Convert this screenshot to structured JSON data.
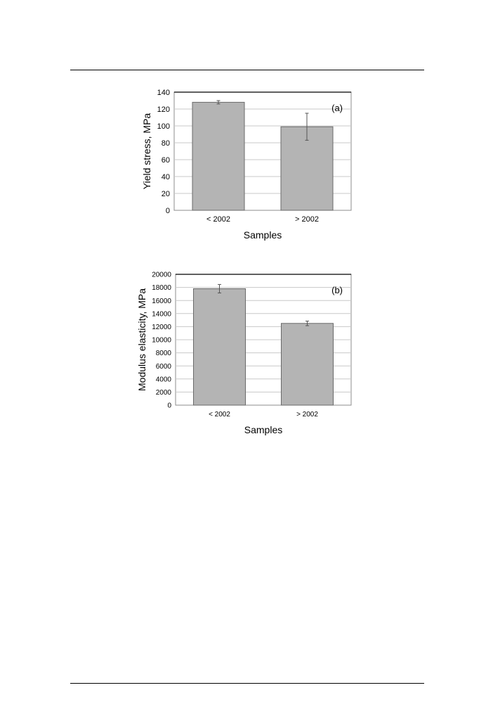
{
  "chart_data": [
    {
      "type": "bar",
      "panel_label": "(a)",
      "categories": [
        "< 2002",
        "> 2002"
      ],
      "values": [
        128,
        99
      ],
      "error": [
        2,
        16
      ],
      "title": "",
      "xlabel": "Samples",
      "ylabel": "Yield stress, MPa",
      "ylim": [
        0,
        140
      ],
      "yticks": [
        0,
        20,
        40,
        60,
        80,
        100,
        120,
        140
      ],
      "grid": true,
      "bar_color": "#b4b4b4"
    },
    {
      "type": "bar",
      "panel_label": "(b)",
      "categories": [
        "< 2002",
        "> 2002"
      ],
      "values": [
        17800,
        12500
      ],
      "error": [
        650,
        350
      ],
      "title": "",
      "xlabel": "Samples",
      "ylabel": "Modulus elasticity, MPa",
      "ylim": [
        0,
        20000
      ],
      "yticks": [
        0,
        2000,
        4000,
        6000,
        8000,
        10000,
        12000,
        14000,
        16000,
        18000,
        20000
      ],
      "grid": true,
      "bar_color": "#b4b4b4"
    }
  ]
}
